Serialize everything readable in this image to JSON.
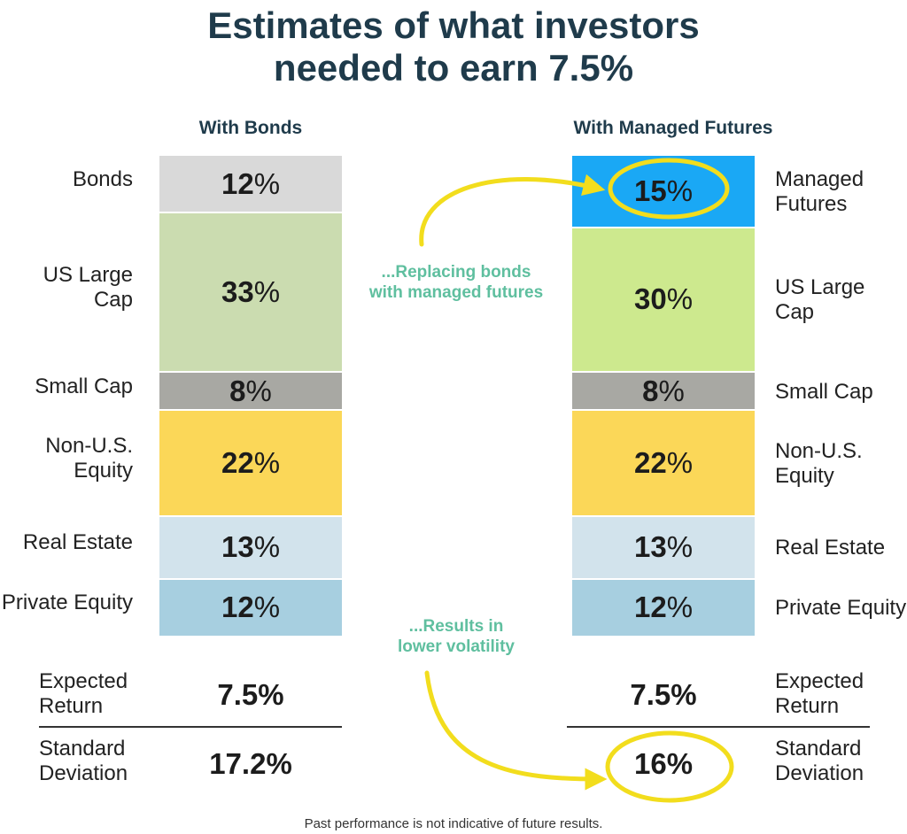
{
  "title_line1": "Estimates of what investors",
  "title_line2": "needed to earn 7.5%",
  "footnote": "Past performance is not indicative of future results.",
  "annotations": {
    "replacing_line1": "...Replacing bonds",
    "replacing_line2": "with managed futures",
    "results_line1": "...Results in",
    "results_line2": "lower volatility",
    "highlight_color": "#f2dd1d"
  },
  "chart_data": {
    "type": "bar",
    "stacked": true,
    "title": "Estimates of what investors needed to earn 7.5%",
    "unit": "%",
    "portfolios": [
      {
        "name": "With Bonds",
        "allocations": [
          {
            "label_lines": [
              "Bonds"
            ],
            "value": 12,
            "display": "12",
            "color": "#d9d9d9"
          },
          {
            "label_lines": [
              "US Large",
              "Cap"
            ],
            "value": 33,
            "display": "33",
            "color": "#cbdcb0"
          },
          {
            "label_lines": [
              "Small Cap"
            ],
            "value": 8,
            "display": "8",
            "color": "#a8a8a3"
          },
          {
            "label_lines": [
              "Non-U.S.",
              "Equity"
            ],
            "value": 22,
            "display": "22",
            "color": "#fbd758"
          },
          {
            "label_lines": [
              "Real Estate"
            ],
            "value": 13,
            "display": "13",
            "color": "#d2e3ec"
          },
          {
            "label_lines": [
              "Private Equity"
            ],
            "value": 12,
            "display": "12",
            "color": "#a7cfe0"
          }
        ],
        "expected_return": {
          "label_lines": [
            "Expected",
            "Return"
          ],
          "value": "7.5"
        },
        "standard_deviation": {
          "label_lines": [
            "Standard",
            "Deviation"
          ],
          "value": "17.2"
        }
      },
      {
        "name": "With Managed Futures",
        "allocations": [
          {
            "label_lines": [
              "Managed",
              "Futures"
            ],
            "value": 15,
            "display": "15",
            "color": "#1aa8f5"
          },
          {
            "label_lines": [
              "US Large",
              "Cap"
            ],
            "value": 30,
            "display": "30",
            "color": "#cde98e"
          },
          {
            "label_lines": [
              "Small Cap"
            ],
            "value": 8,
            "display": "8",
            "color": "#a8a8a3"
          },
          {
            "label_lines": [
              "Non-U.S.",
              "Equity"
            ],
            "value": 22,
            "display": "22",
            "color": "#fbd758"
          },
          {
            "label_lines": [
              "Real Estate"
            ],
            "value": 13,
            "display": "13",
            "color": "#d2e3ec"
          },
          {
            "label_lines": [
              "Private Equity"
            ],
            "value": 12,
            "display": "12",
            "color": "#a7cfe0"
          }
        ],
        "expected_return": {
          "label_lines": [
            "Expected",
            "Return"
          ],
          "value": "7.5"
        },
        "standard_deviation": {
          "label_lines": [
            "Standard",
            "Deviation"
          ],
          "value": "16"
        }
      }
    ]
  }
}
